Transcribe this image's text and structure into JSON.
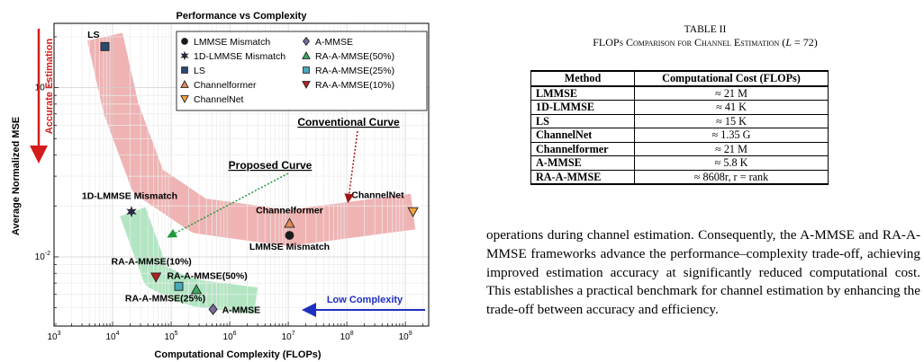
{
  "chart_data": {
    "type": "scatter",
    "title": "Performance vs Complexity",
    "xlabel": "Computational Complexity (FLOPs)",
    "ylabel": "Average Normalized MSE",
    "x_scale": "log",
    "y_scale": "log",
    "xlim": [
      1000,
      2500000000
    ],
    "ylim": [
      0.0039,
      0.24
    ],
    "x_ticks": [
      {
        "v": 1000,
        "b": "10",
        "e": "3"
      },
      {
        "v": 10000,
        "b": "10",
        "e": "4"
      },
      {
        "v": 100000,
        "b": "10",
        "e": "5"
      },
      {
        "v": 1000000,
        "b": "10",
        "e": "6"
      },
      {
        "v": 10000000,
        "b": "10",
        "e": "7"
      },
      {
        "v": 100000000,
        "b": "10",
        "e": "8"
      },
      {
        "v": 1000000000,
        "b": "10",
        "e": "9"
      }
    ],
    "y_ticks": [
      {
        "v": 0.01,
        "b": "10",
        "e": "-2"
      },
      {
        "v": 0.1,
        "b": "10",
        "e": "-1"
      }
    ],
    "grid": true,
    "legend_position": "top-right",
    "series": [
      {
        "name": "LMMSE Mismatch",
        "x": 10500000,
        "y": 0.0134,
        "marker": "circle",
        "color": "#1a1a1a",
        "label": "LMMSE Mismatch"
      },
      {
        "name": "1D-LMMSE Mismatch",
        "x": 21000,
        "y": 0.0185,
        "marker": "star",
        "color": "#2e2a5c",
        "label": "1D-LMMSE Mismatch"
      },
      {
        "name": "LS",
        "x": 7400,
        "y": 0.175,
        "marker": "square",
        "color": "#2b4a6e",
        "label": "LS"
      },
      {
        "name": "Channelformer",
        "x": 10500000,
        "y": 0.0158,
        "marker": "triangle-up",
        "color": "#e08a55",
        "label": "Channelformer"
      },
      {
        "name": "ChannelNet",
        "x": 1350000000,
        "y": 0.0185,
        "marker": "triangle-down",
        "color": "#f2a33c",
        "label": "ChannelNet"
      },
      {
        "name": "A-MMSE",
        "x": 520000,
        "y": 0.0049,
        "marker": "diamond",
        "color": "#7a6a9a",
        "label": "A-MMSE"
      },
      {
        "name": "RA-A-MMSE(50%)",
        "x": 270000,
        "y": 0.0064,
        "marker": "triangle-up",
        "color": "#3aa860",
        "label": "RA-A-MMSE(50%)"
      },
      {
        "name": "RA-A-MMSE(25%)",
        "x": 135000,
        "y": 0.0067,
        "marker": "square",
        "color": "#4aaab8",
        "label": "RA-A-MMSE(25%)"
      },
      {
        "name": "RA-A-MMSE(10%)",
        "x": 55000,
        "y": 0.0076,
        "marker": "triangle-down",
        "color": "#b52222",
        "label": "RA-A-MMSE(10%)"
      }
    ],
    "bands": [
      {
        "name": "Conventional Curve",
        "color": "#e68080",
        "points": [
          [
            7400,
            0.2
          ],
          [
            14000,
            0.075
          ],
          [
            40000,
            0.028
          ],
          [
            300000,
            0.0175
          ],
          [
            10000000,
            0.0148
          ],
          [
            1350000000,
            0.0185
          ]
        ]
      },
      {
        "name": "Proposed Curve",
        "color": "#7fd69a",
        "points": [
          [
            22000,
            0.0185
          ],
          [
            55000,
            0.0077
          ],
          [
            135000,
            0.0066
          ],
          [
            270000,
            0.0061
          ],
          [
            2800000,
            0.0055
          ]
        ]
      }
    ],
    "annotations": {
      "conventional": "Conventional Curve",
      "proposed": "Proposed Curve",
      "accurate": "Accurate Estimation",
      "low": "Low Complexity"
    }
  },
  "table": {
    "number": "TABLE II",
    "title_main": "FLOPs Comparison for Channel Estimation (",
    "title_var": "L",
    "title_tail": " = 72)",
    "headers": [
      "Method",
      "Computational Cost (FLOPs)"
    ],
    "rows": [
      {
        "method": "LMMSE",
        "cost": "≈ 21 M"
      },
      {
        "method": "1D-LMMSE",
        "cost": "≈ 41 K"
      },
      {
        "method": "LS",
        "cost": "≈ 15 K"
      },
      {
        "method": "ChannelNet",
        "cost": "≈ 1.35 G"
      },
      {
        "method": "Channelformer",
        "cost": "≈ 21 M"
      },
      {
        "method": "A-MMSE",
        "cost": "≈ 5.8 K"
      },
      {
        "method": "RA-A-MMSE",
        "cost": "≈ 8608r,  r = rank"
      }
    ]
  },
  "paragraph": "operations during channel estimation. Consequently, the A-MMSE and RA-A-MMSE frameworks advance the performance–complexity trade-off, achieving improved estimation accuracy at significantly reduced computational cost. This establishes a practical benchmark for channel estimation by enhancing the trade-off between accuracy and efficiency."
}
